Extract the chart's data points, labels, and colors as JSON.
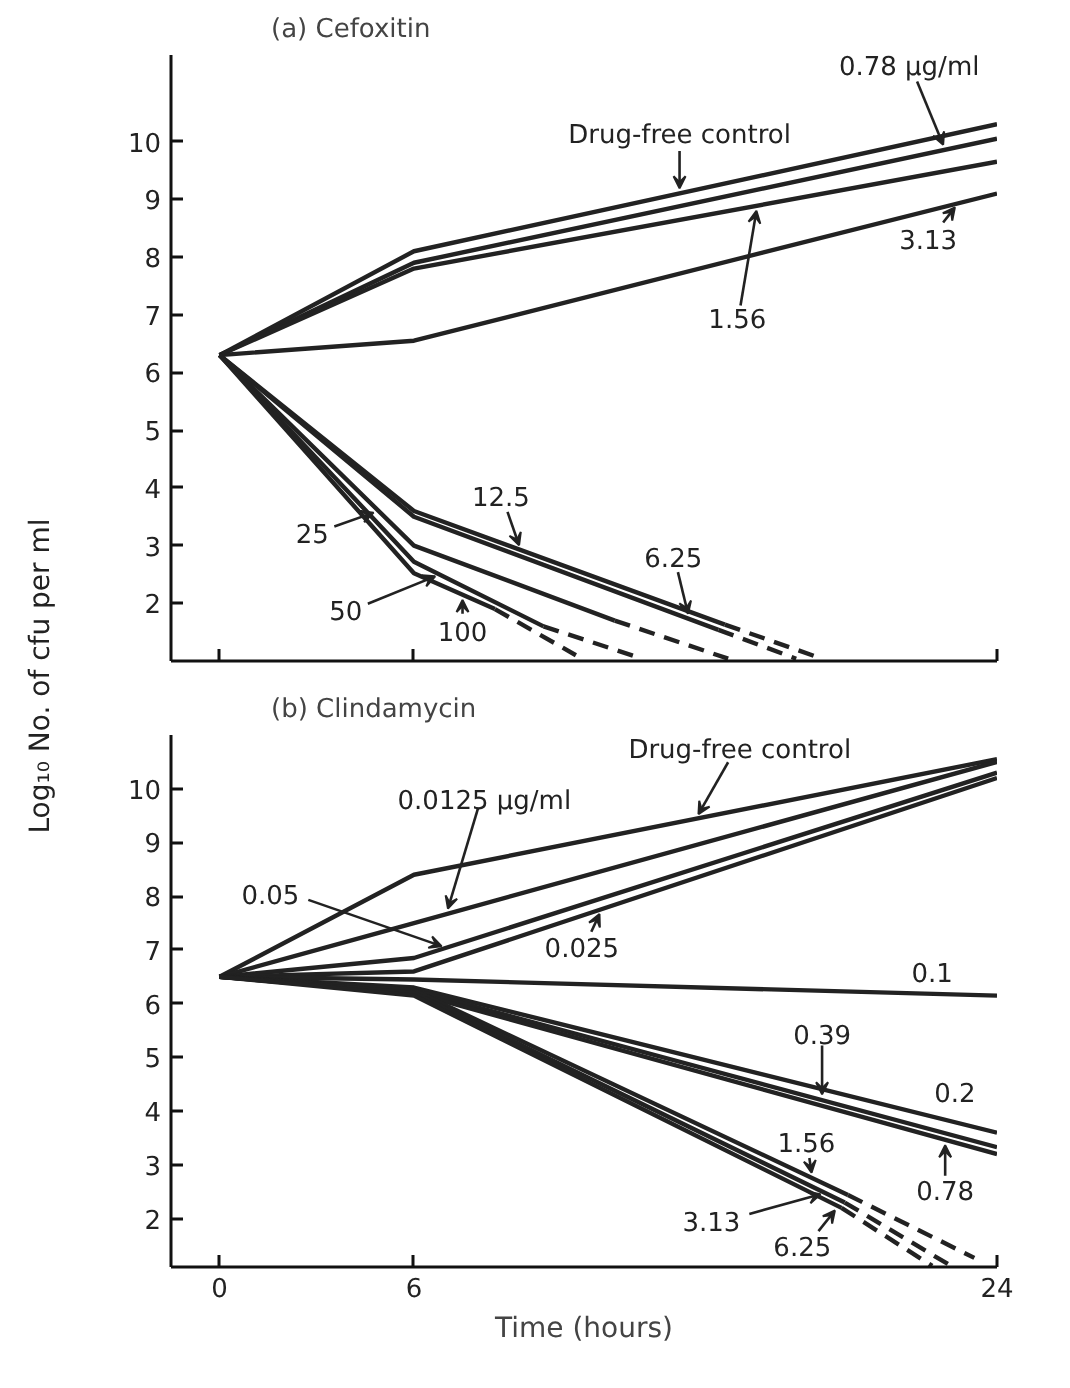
{
  "chart_data": [
    {
      "type": "line",
      "title": "(a) Cefoxitin",
      "ylabel": "Log₁₀ No. of cfu per ml",
      "xlim": [
        -1.5,
        24
      ],
      "ylim": [
        1.0,
        11.5
      ],
      "xticks": [
        0,
        6,
        24
      ],
      "yticks": [
        2,
        3,
        4,
        5,
        6,
        7,
        8,
        9,
        10
      ],
      "tick_labels": "y",
      "line_style": "solid",
      "marker": "none",
      "series": [
        {
          "color": "#222222",
          "x": [
            0,
            6,
            24
          ],
          "values": [
            6.3,
            8.1,
            10.3
          ]
        },
        {
          "color": "#222222",
          "x": [
            0,
            6,
            24
          ],
          "values": [
            6.3,
            7.9,
            10.05
          ]
        },
        {
          "color": "#222222",
          "x": [
            0,
            6,
            24
          ],
          "values": [
            6.3,
            7.8,
            9.65
          ]
        },
        {
          "color": "#222222",
          "x": [
            0,
            6,
            24
          ],
          "values": [
            6.3,
            6.55,
            9.1
          ]
        },
        {
          "color": "#222222",
          "x": [
            0,
            6,
            15.6
          ],
          "values": [
            6.3,
            3.6,
            1.63
          ]
        },
        {
          "color": "#222222",
          "x": [
            15.6,
            18.6
          ],
          "values": [
            1.63,
            1.04
          ],
          "line_style": "dashed"
        },
        {
          "color": "#222222",
          "x": [
            0,
            6,
            15.4
          ],
          "values": [
            6.3,
            3.5,
            1.54
          ]
        },
        {
          "color": "#222222",
          "x": [
            15.4,
            17.8
          ],
          "values": [
            1.54,
            1.04
          ],
          "line_style": "dashed"
        },
        {
          "color": "#222222",
          "x": [
            0,
            6,
            12.2
          ],
          "values": [
            6.3,
            3.0,
            1.7
          ]
        },
        {
          "color": "#222222",
          "x": [
            12.2,
            15.7
          ],
          "values": [
            1.7,
            1.04
          ],
          "line_style": "dashed"
        },
        {
          "color": "#222222",
          "x": [
            0,
            6,
            10
          ],
          "values": [
            6.3,
            2.72,
            1.6
          ]
        },
        {
          "color": "#222222",
          "x": [
            10,
            13
          ],
          "values": [
            1.6,
            1.05
          ],
          "line_style": "dashed"
        },
        {
          "color": "#222222",
          "x": [
            0,
            6,
            8.5
          ],
          "values": [
            6.3,
            2.52,
            1.9
          ]
        },
        {
          "color": "#222222",
          "x": [
            8.5,
            11
          ],
          "values": [
            1.9,
            1.1
          ],
          "line_style": "dashed"
        }
      ],
      "annotations": [
        {
          "text": "Drug-free control",
          "x": 14.2,
          "y": 9.1
        },
        {
          "text": "0.78 µg/ml",
          "x": 22.4,
          "y": 9.86
        },
        {
          "text": "1.56",
          "x": 16.6,
          "y": 8.89
        },
        {
          "text": "3.13",
          "x": 22.8,
          "y": 8.93
        },
        {
          "text": "12.5",
          "x": 9.3,
          "y": 2.92
        },
        {
          "text": "6.25",
          "x": 14.5,
          "y": 1.73
        },
        {
          "text": "25",
          "x": 4.9,
          "y": 3.6
        },
        {
          "text": "50",
          "x": 6.8,
          "y": 2.5
        },
        {
          "text": "100",
          "x": 7.5,
          "y": 2.15
        }
      ]
    },
    {
      "type": "line",
      "title": "(b) Clindamycin",
      "xlabel": "Time (hours)",
      "xlim": [
        -1.5,
        24
      ],
      "ylim": [
        1.1,
        11.0
      ],
      "xticks": [
        0,
        6,
        24
      ],
      "yticks": [
        2,
        3,
        4,
        5,
        6,
        7,
        8,
        9,
        10
      ],
      "line_style": "solid",
      "marker": "none",
      "series": [
        {
          "color": "#222222",
          "x": [
            0,
            6,
            24
          ],
          "values": [
            6.5,
            8.4,
            10.55
          ]
        },
        {
          "color": "#222222",
          "x": [
            0,
            6,
            24
          ],
          "values": [
            6.5,
            7.5,
            10.5
          ]
        },
        {
          "color": "#222222",
          "x": [
            0,
            6,
            24
          ],
          "values": [
            6.5,
            6.85,
            10.3
          ]
        },
        {
          "color": "#222222",
          "x": [
            0,
            6,
            24
          ],
          "values": [
            6.5,
            6.6,
            10.2
          ]
        },
        {
          "color": "#222222",
          "x": [
            0,
            6,
            24
          ],
          "values": [
            6.5,
            6.45,
            6.15
          ]
        },
        {
          "color": "#222222",
          "x": [
            0,
            6,
            24
          ],
          "values": [
            6.5,
            6.3,
            3.6
          ]
        },
        {
          "color": "#222222",
          "x": [
            0,
            6,
            24
          ],
          "values": [
            6.5,
            6.25,
            3.33
          ]
        },
        {
          "color": "#222222",
          "x": [
            0,
            6,
            24
          ],
          "values": [
            6.5,
            6.2,
            3.2
          ]
        },
        {
          "color": "#222222",
          "x": [
            0,
            6,
            19.4
          ],
          "values": [
            6.5,
            6.25,
            2.44
          ]
        },
        {
          "color": "#222222",
          "x": [
            19.4,
            23.3
          ],
          "values": [
            2.44,
            1.27
          ],
          "line_style": "dashed"
        },
        {
          "color": "#222222",
          "x": [
            0,
            6,
            19.3
          ],
          "values": [
            6.5,
            6.2,
            2.3
          ]
        },
        {
          "color": "#222222",
          "x": [
            19.3,
            22.5
          ],
          "values": [
            2.3,
            1.15
          ],
          "line_style": "dashed"
        },
        {
          "color": "#222222",
          "x": [
            0,
            6,
            19.2
          ],
          "values": [
            6.5,
            6.15,
            2.2
          ]
        },
        {
          "color": "#222222",
          "x": [
            19.2,
            22
          ],
          "values": [
            2.2,
            1.12
          ],
          "line_style": "dashed"
        }
      ],
      "annotations": [
        {
          "text": "Drug-free control",
          "x": 14.7,
          "y": 9.44
        },
        {
          "text": "0.0125 µg/ml",
          "x": 7.0,
          "y": 7.67
        },
        {
          "text": "0.05",
          "x": 7.0,
          "y": 7.04
        },
        {
          "text": "0.025",
          "x": 11.8,
          "y": 7.76
        },
        {
          "text": "0.1",
          "x": 22.0,
          "y": 6.18
        },
        {
          "text": "0.39",
          "x": 18.6,
          "y": 4.21
        },
        {
          "text": "0.2",
          "x": 22.7,
          "y": 3.8
        },
        {
          "text": "0.78",
          "x": 22.4,
          "y": 3.47
        },
        {
          "text": "1.56",
          "x": 18.3,
          "y": 2.75
        },
        {
          "text": "3.13",
          "x": 18.7,
          "y": 2.48
        },
        {
          "text": "6.25",
          "x": 19.1,
          "y": 2.23
        }
      ]
    }
  ]
}
